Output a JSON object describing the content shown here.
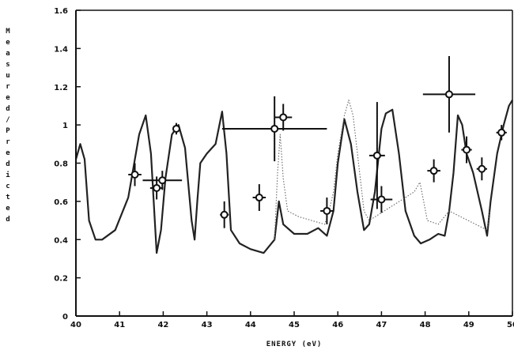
{
  "chart_data": {
    "type": "line",
    "title": "",
    "xlabel": "ENERGY (eV)",
    "ylabel": "Measured/Predicted",
    "xlim": [
      40,
      50
    ],
    "ylim": [
      0,
      1.6
    ],
    "x_ticks": [
      "40",
      "41",
      "42",
      "43",
      "44",
      "45",
      "46",
      "47",
      "48",
      "49",
      "50"
    ],
    "y_ticks": [
      "0",
      "0.2",
      "0.4",
      "0.6",
      "0.8",
      "1",
      "1.2",
      "1.4",
      "1.6"
    ],
    "grid": false,
    "series": [
      {
        "style": "solid",
        "color": "#222222",
        "points": [
          [
            40.0,
            0.82
          ],
          [
            40.1,
            0.9
          ],
          [
            40.2,
            0.82
          ],
          [
            40.3,
            0.5
          ],
          [
            40.45,
            0.4
          ],
          [
            40.6,
            0.4
          ],
          [
            40.9,
            0.45
          ],
          [
            41.2,
            0.62
          ],
          [
            41.45,
            0.95
          ],
          [
            41.6,
            1.05
          ],
          [
            41.72,
            0.85
          ],
          [
            41.85,
            0.33
          ],
          [
            41.95,
            0.45
          ],
          [
            42.05,
            0.72
          ],
          [
            42.2,
            0.95
          ],
          [
            42.35,
            1.0
          ],
          [
            42.5,
            0.88
          ],
          [
            42.65,
            0.5
          ],
          [
            42.72,
            0.4
          ],
          [
            42.78,
            0.6
          ],
          [
            42.85,
            0.8
          ],
          [
            43.0,
            0.85
          ],
          [
            43.2,
            0.9
          ],
          [
            43.35,
            1.07
          ],
          [
            43.45,
            0.85
          ],
          [
            43.55,
            0.45
          ],
          [
            43.75,
            0.38
          ],
          [
            44.0,
            0.35
          ],
          [
            44.3,
            0.33
          ],
          [
            44.55,
            0.4
          ],
          [
            44.65,
            0.6
          ],
          [
            44.75,
            0.48
          ],
          [
            45.0,
            0.43
          ],
          [
            45.3,
            0.43
          ],
          [
            45.55,
            0.46
          ],
          [
            45.75,
            0.42
          ],
          [
            45.9,
            0.55
          ],
          [
            46.0,
            0.8
          ],
          [
            46.15,
            1.03
          ],
          [
            46.3,
            0.9
          ],
          [
            46.45,
            0.65
          ],
          [
            46.6,
            0.45
          ],
          [
            46.72,
            0.48
          ],
          [
            46.85,
            0.65
          ],
          [
            47.0,
            0.98
          ],
          [
            47.1,
            1.06
          ],
          [
            47.25,
            1.08
          ],
          [
            47.4,
            0.85
          ],
          [
            47.55,
            0.55
          ],
          [
            47.75,
            0.42
          ],
          [
            47.9,
            0.38
          ],
          [
            48.1,
            0.4
          ],
          [
            48.3,
            0.43
          ],
          [
            48.45,
            0.42
          ],
          [
            48.55,
            0.55
          ],
          [
            48.65,
            0.75
          ],
          [
            48.75,
            1.05
          ],
          [
            48.85,
            1.0
          ],
          [
            48.95,
            0.85
          ],
          [
            49.1,
            0.75
          ],
          [
            49.3,
            0.55
          ],
          [
            49.42,
            0.42
          ],
          [
            49.5,
            0.6
          ],
          [
            49.65,
            0.85
          ],
          [
            49.8,
            1.0
          ],
          [
            49.92,
            1.1
          ],
          [
            50.0,
            1.13
          ]
        ]
      },
      {
        "style": "dotted",
        "color": "#666666",
        "points": [
          [
            44.55,
            0.4
          ],
          [
            44.62,
            0.75
          ],
          [
            44.68,
            0.95
          ],
          [
            44.75,
            0.72
          ],
          [
            44.85,
            0.55
          ],
          [
            45.1,
            0.52
          ],
          [
            45.4,
            0.5
          ],
          [
            45.7,
            0.48
          ],
          [
            45.8,
            0.55
          ],
          [
            45.9,
            0.65
          ],
          [
            46.0,
            0.85
          ],
          [
            46.15,
            1.05
          ],
          [
            46.25,
            1.13
          ],
          [
            46.35,
            1.05
          ],
          [
            46.5,
            0.75
          ],
          [
            46.6,
            0.55
          ],
          [
            46.72,
            0.5
          ],
          [
            47.55,
            0.62
          ],
          [
            47.75,
            0.65
          ],
          [
            47.88,
            0.7
          ],
          [
            47.95,
            0.62
          ],
          [
            48.05,
            0.5
          ],
          [
            48.3,
            0.48
          ],
          [
            48.55,
            0.55
          ],
          [
            49.42,
            0.45
          ],
          [
            49.48,
            0.55
          ]
        ]
      }
    ],
    "measurements": [
      {
        "x": 41.35,
        "y": 0.74,
        "xerr": 0.15,
        "yerr": 0.06
      },
      {
        "x": 41.85,
        "y": 0.67,
        "xerr": 0.15,
        "yerr": 0.06
      },
      {
        "x": 41.98,
        "y": 0.71,
        "xerr": 0.45,
        "yerr": 0.05
      },
      {
        "x": 42.3,
        "y": 0.98,
        "xerr": 0.05,
        "yerr": 0.03
      },
      {
        "x": 43.4,
        "y": 0.53,
        "xerr": 0.1,
        "yerr": 0.07
      },
      {
        "x": 44.2,
        "y": 0.62,
        "xerr": 0.15,
        "yerr": 0.07
      },
      {
        "x": 44.55,
        "y": 0.98,
        "xerr": 1.2,
        "yerr": 0.17
      },
      {
        "x": 44.75,
        "y": 1.04,
        "xerr": 0.2,
        "yerr": 0.07
      },
      {
        "x": 45.75,
        "y": 0.55,
        "xerr": 0.15,
        "yerr": 0.07
      },
      {
        "x": 46.9,
        "y": 0.84,
        "xerr": 0.18,
        "yerr": 0.28
      },
      {
        "x": 47.0,
        "y": 0.61,
        "xerr": 0.25,
        "yerr": 0.07
      },
      {
        "x": 48.2,
        "y": 0.76,
        "xerr": 0.15,
        "yerr": 0.06
      },
      {
        "x": 48.55,
        "y": 1.16,
        "xerr": 0.6,
        "yerr": 0.2
      },
      {
        "x": 48.95,
        "y": 0.87,
        "xerr": 0.12,
        "yerr": 0.07
      },
      {
        "x": 49.3,
        "y": 0.77,
        "xerr": 0.12,
        "yerr": 0.06
      },
      {
        "x": 49.75,
        "y": 0.96,
        "xerr": 0.12,
        "yerr": 0.04
      }
    ]
  }
}
